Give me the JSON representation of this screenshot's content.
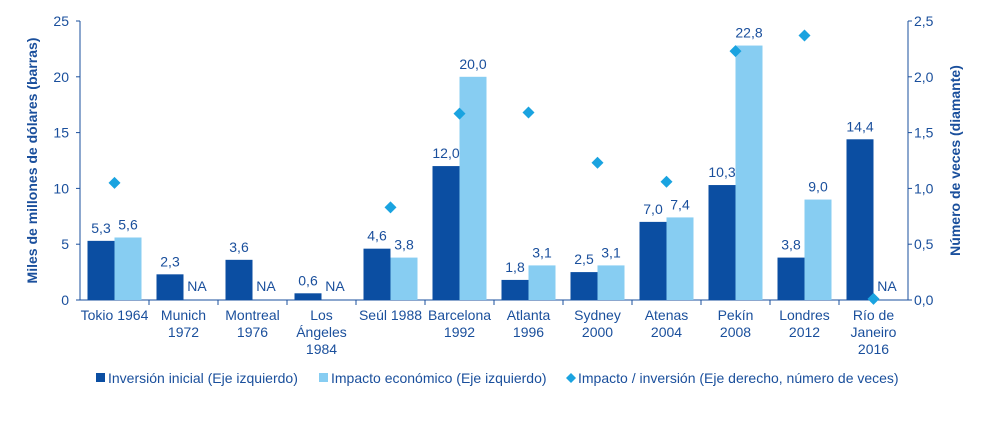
{
  "chart_data": {
    "type": "bar",
    "categories": [
      [
        "Tokio 1964"
      ],
      [
        "Munich",
        "1972"
      ],
      [
        "Montreal",
        "1976"
      ],
      [
        "Los",
        "Ángeles",
        "1984"
      ],
      [
        "Seúl 1988"
      ],
      [
        "Barcelona",
        "1992"
      ],
      [
        "Atlanta",
        "1996"
      ],
      [
        "Sydney",
        "2000"
      ],
      [
        "Atenas",
        "2004"
      ],
      [
        "Pekín",
        "2008"
      ],
      [
        "Londres",
        "2012"
      ],
      [
        "Río de",
        "Janeiro",
        "2016"
      ]
    ],
    "series": [
      {
        "name": "Inversión inicial (Eje izquierdo)",
        "type": "bar",
        "axis": "left",
        "color": "#0b4ea2",
        "values": [
          5.3,
          2.3,
          3.6,
          0.6,
          4.6,
          12.0,
          1.8,
          2.5,
          7.0,
          10.3,
          3.8,
          14.4
        ],
        "labels": [
          "5,3",
          "2,3",
          "3,6",
          "0,6",
          "4,6",
          "12,0",
          "1,8",
          "2,5",
          "7,0",
          "10,3",
          "3,8",
          "14,4"
        ]
      },
      {
        "name": "Impacto económico (Eje izquierdo)",
        "type": "bar",
        "axis": "left",
        "color": "#87cdf2",
        "values": [
          5.6,
          null,
          null,
          null,
          3.8,
          20.0,
          3.1,
          3.1,
          7.4,
          22.8,
          9.0,
          null
        ],
        "labels": [
          "5,6",
          "NA",
          "NA",
          "NA",
          "3,8",
          "20,0",
          "3,1",
          "3,1",
          "7,4",
          "22,8",
          "9,0",
          "NA"
        ]
      },
      {
        "name": "Impacto / inversión (Eje derecho, número de veces)",
        "type": "scatter",
        "marker": "diamond",
        "axis": "right",
        "color": "#1aa3e0",
        "values": [
          1.05,
          null,
          null,
          null,
          0.83,
          1.67,
          1.68,
          1.23,
          1.06,
          2.23,
          2.37,
          0.01
        ]
      }
    ],
    "ylabel": "Miles de millones de dólares (barras)",
    "y2label": "Número de veces (diamante)",
    "ylim": [
      0,
      25
    ],
    "y2lim": [
      0,
      2.5
    ],
    "yticks": [
      "0",
      "5",
      "10",
      "15",
      "20",
      "25"
    ],
    "y2ticks": [
      "0,0",
      "0,5",
      "1,0",
      "1,5",
      "2,0",
      "2,5"
    ],
    "grid": false,
    "legend_position": "bottom"
  }
}
